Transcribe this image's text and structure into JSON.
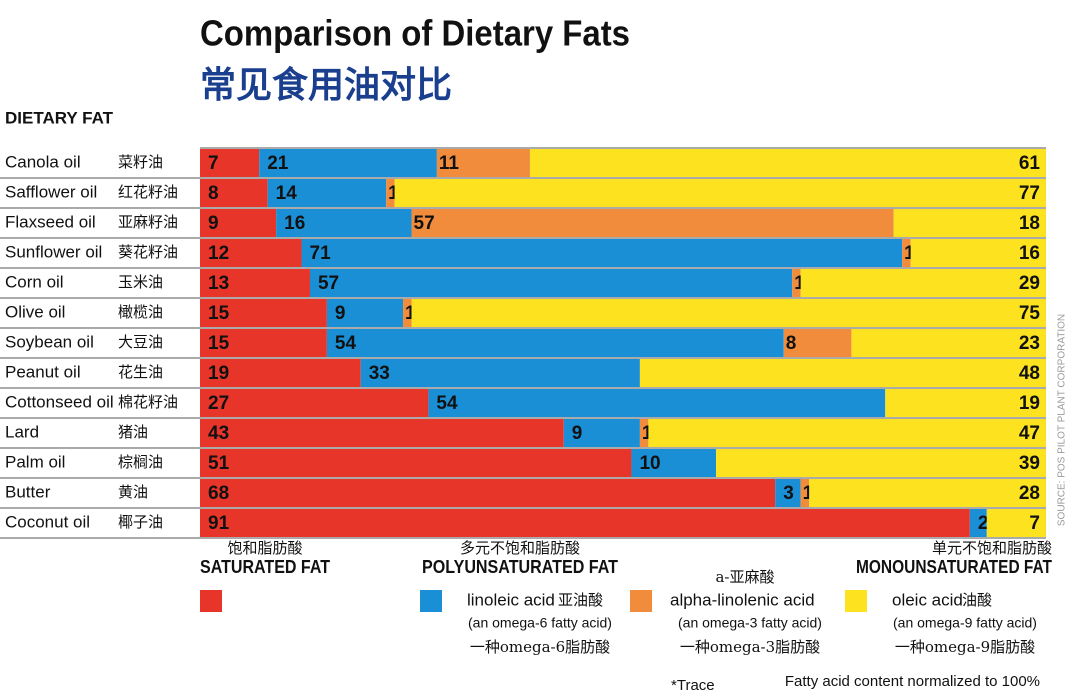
{
  "chart_data": {
    "type": "stacked-bar-horizontal",
    "title": "Comparison of Dietary Fats",
    "subtitle": "常见食用油对比",
    "y_label": "DIETARY FAT",
    "categories": [
      "Canola oil",
      "Safflower oil",
      "Flaxseed oil",
      "Sunflower oil",
      "Corn oil",
      "Olive oil",
      "Soybean oil",
      "Peanut oil",
      "Cottonseed oil",
      "Lard",
      "Palm oil",
      "Butter",
      "Coconut oil"
    ],
    "categories_zh": [
      "菜籽油",
      "红花籽油",
      "亚麻籽油",
      "葵花籽油",
      "玉米油",
      "橄榄油",
      "大豆油",
      "花生油",
      "棉花籽油",
      "猪油",
      "棕榈油",
      "黄油",
      "椰子油"
    ],
    "xlim": [
      0,
      100
    ],
    "groups": [
      {
        "name": "SATURATED FAT",
        "name_zh": "饱和脂肪酸",
        "series": [
          0
        ]
      },
      {
        "name": "POLYUNSATURATED FAT",
        "name_zh": "多元不饱和脂肪酸",
        "series": [
          1,
          2
        ]
      },
      {
        "name": "MONOUNSATURATED FAT",
        "name_zh": "单元不饱和脂肪酸",
        "series": [
          3
        ]
      }
    ],
    "series": [
      {
        "color": "#e8352a",
        "values": [
          7,
          8,
          9,
          12,
          13,
          15,
          15,
          19,
          27,
          43,
          51,
          68,
          91
        ]
      },
      {
        "name": "linoleic acid",
        "name_zh": "亚油酸",
        "note": "(an omega-6 fatty acid)",
        "note_zh": "一种omega-6脂肪酸",
        "color": "#1a8fd6",
        "values": [
          21,
          14,
          16,
          71,
          57,
          9,
          54,
          33,
          54,
          9,
          10,
          3,
          2
        ]
      },
      {
        "name": "alpha-linolenic acid",
        "name_zh": "a-亚麻酸",
        "note": "(an omega-3 fatty acid)",
        "note_zh": "一种omega-3脂肪酸",
        "color": "#f08c3c",
        "values": [
          11,
          1,
          57,
          1,
          1,
          1,
          8,
          0,
          0,
          1,
          0,
          1,
          null
        ],
        "value_labels": [
          "11",
          "1",
          "57",
          "1",
          "1",
          "1",
          "8",
          "*",
          "*",
          "1",
          "*",
          "1",
          null
        ]
      },
      {
        "name": "oleic acid",
        "name_zh": "油酸",
        "note": "(an omega-9 fatty acid)",
        "note_zh": "一种omega-9脂肪酸",
        "color": "#fde21f",
        "values": [
          61,
          77,
          18,
          16,
          29,
          75,
          23,
          48,
          19,
          47,
          39,
          28,
          7
        ]
      }
    ],
    "footnote": "*Trace",
    "note": "Fatty acid content normalized to 100%",
    "source": "SOURCE: POS PILOT PLANT CORPORATION"
  }
}
